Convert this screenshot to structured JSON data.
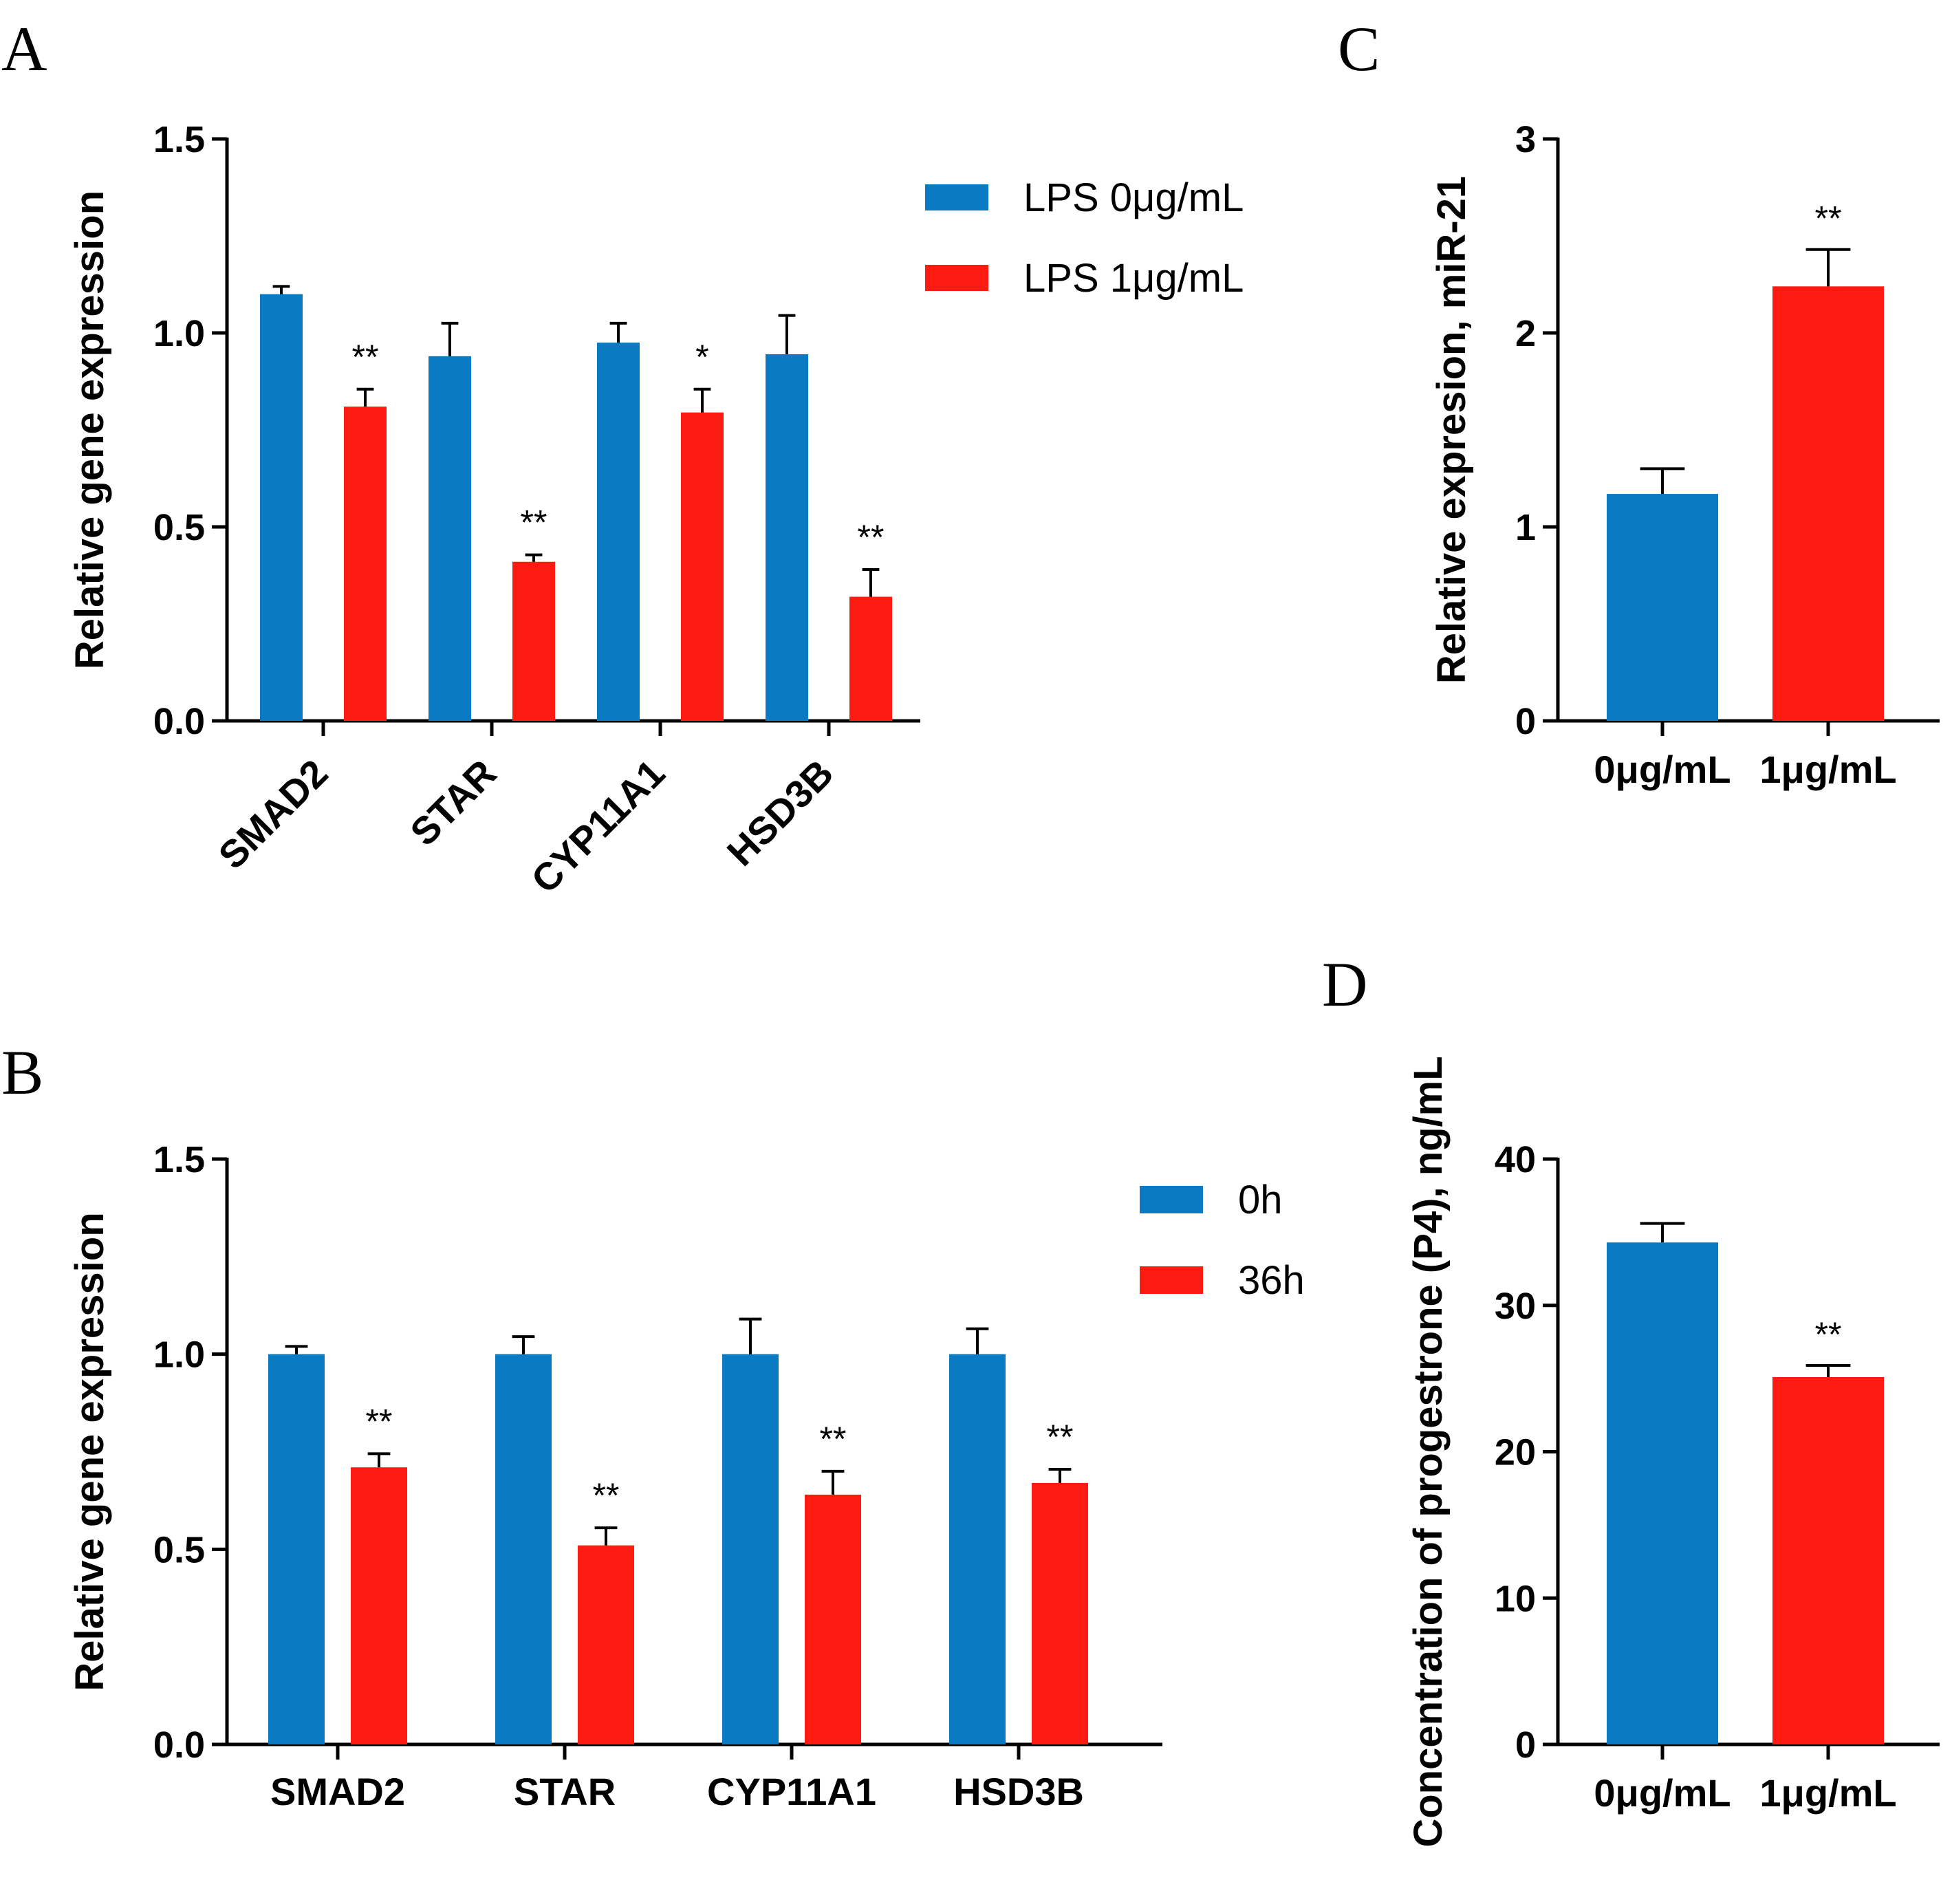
{
  "colors": {
    "series_a": "#0a7bc2",
    "series_b": "#fb1b10"
  },
  "chart_data": [
    {
      "panel": "A",
      "type": "bar",
      "ylabel": "Relative gene expression",
      "ylim": [
        0,
        1.5
      ],
      "yticks": [
        "0.0",
        "0.5",
        "1.0",
        "1.5"
      ],
      "categories": [
        "SMAD2",
        "STAR",
        "CYP11A1",
        "HSD3B"
      ],
      "series": [
        {
          "name": "LPS 0μg/mL",
          "values": [
            1.1,
            0.94,
            0.975,
            0.945
          ],
          "errors": [
            0.02,
            0.085,
            0.05,
            0.1
          ]
        },
        {
          "name": "LPS 1μg/mL",
          "values": [
            0.81,
            0.41,
            0.795,
            0.32
          ],
          "errors": [
            0.045,
            0.018,
            0.06,
            0.07
          ]
        }
      ],
      "significance": [
        "**",
        "**",
        "*",
        "**"
      ],
      "legend": "top-right",
      "rotated_labels": true
    },
    {
      "panel": "B",
      "type": "bar",
      "ylabel": "Relative gene expression",
      "ylim": [
        0,
        1.5
      ],
      "yticks": [
        "0.0",
        "0.5",
        "1.0",
        "1.5"
      ],
      "categories": [
        "SMAD2",
        "STAR",
        "CYP11A1",
        "HSD3B"
      ],
      "series": [
        {
          "name": "0h",
          "values": [
            1.0,
            1.0,
            1.0,
            1.0
          ],
          "errors": [
            0.02,
            0.045,
            0.09,
            0.065
          ]
        },
        {
          "name": "36h",
          "values": [
            0.71,
            0.51,
            0.64,
            0.67
          ],
          "errors": [
            0.035,
            0.045,
            0.06,
            0.035
          ]
        }
      ],
      "significance": [
        "**",
        "**",
        "**",
        "**"
      ],
      "legend": "top-right",
      "rotated_labels": false
    },
    {
      "panel": "C",
      "type": "bar",
      "ylabel": "Relative expresion, miR-21",
      "ylim": [
        0,
        3
      ],
      "yticks": [
        "0",
        "1",
        "2",
        "3"
      ],
      "categories": [
        "0μg/mL",
        "1μg/mL"
      ],
      "values": [
        1.17,
        2.24
      ],
      "errors": [
        0.13,
        0.19
      ],
      "significance": [
        "",
        "**"
      ]
    },
    {
      "panel": "D",
      "type": "bar",
      "ylabel": "Concentration of progestrone (P4), ng/mL",
      "ylim": [
        0,
        40
      ],
      "yticks": [
        "0",
        "10",
        "20",
        "30",
        "40"
      ],
      "categories": [
        "0μg/mL",
        "1μg/mL"
      ],
      "values": [
        34.3,
        25.1
      ],
      "errors": [
        1.3,
        0.8
      ],
      "significance": [
        "",
        "**"
      ]
    }
  ]
}
